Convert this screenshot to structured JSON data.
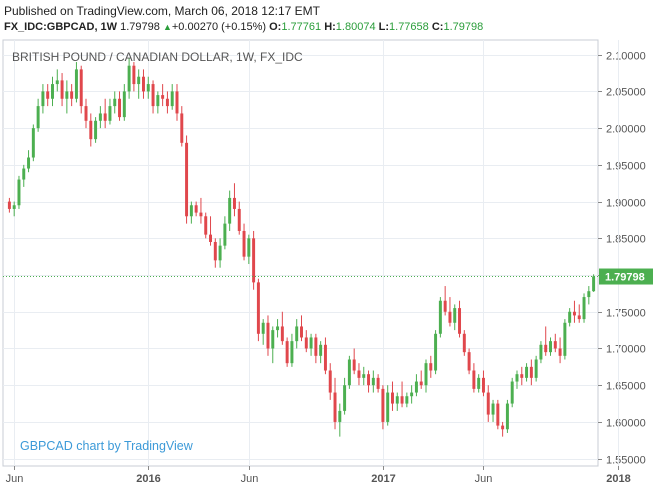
{
  "header": {
    "published": "Published on TradingView.com, March 06, 2018 12:17 EMT",
    "symbol": "FX_IDC:GBPCAD, 1W",
    "last": "1.79798",
    "change": "+0.00270 (+0.15%)",
    "o_label": "O:",
    "o": "1.77761",
    "h_label": "H:",
    "h": "1.80074",
    "l_label": "L:",
    "l": "1.77658",
    "c_label": "C:",
    "c": "1.79798",
    "up_arrow": "▲"
  },
  "colors": {
    "up": "#4caf50",
    "down": "#e0474c",
    "grid": "#e9edf2",
    "axis": "#555555",
    "price_tag": "#4caf50",
    "watermark": "#3c9ad8"
  },
  "chart_data": {
    "type": "candlestick",
    "title": "BRITISH POUND / CANADIAN DOLLAR, 1W, FX_IDC",
    "watermark": "GBPCAD chart by TradingView",
    "ylim": [
      1.54,
      2.12
    ],
    "y_ticks": [
      "2.10000",
      "2.05000",
      "2.00000",
      "1.95000",
      "1.90000",
      "1.85000",
      "1.80000",
      "1.75000",
      "1.70000",
      "1.65000",
      "1.60000",
      "1.55000"
    ],
    "x_ticks": [
      {
        "label": "Jun",
        "index": 1
      },
      {
        "label": "2016",
        "index": 29
      },
      {
        "label": "Jun",
        "index": 50
      },
      {
        "label": "2017",
        "index": 78
      },
      {
        "label": "Jun",
        "index": 99
      },
      {
        "label": "2018",
        "index": 127
      }
    ],
    "last_price": 1.79798,
    "last_price_label": "1.79798",
    "candles": [
      [
        1.9,
        1.905,
        1.885,
        1.89
      ],
      [
        1.89,
        1.9,
        1.88,
        1.895
      ],
      [
        1.895,
        1.935,
        1.89,
        1.93
      ],
      [
        1.93,
        1.95,
        1.92,
        1.945
      ],
      [
        1.945,
        1.97,
        1.94,
        1.96
      ],
      [
        1.96,
        2.005,
        1.955,
        2.0
      ],
      [
        2.0,
        2.04,
        1.995,
        2.03
      ],
      [
        2.03,
        2.06,
        2.02,
        2.05
      ],
      [
        2.05,
        2.06,
        2.03,
        2.04
      ],
      [
        2.04,
        2.07,
        2.03,
        2.06
      ],
      [
        2.06,
        2.08,
        2.05,
        2.065
      ],
      [
        2.065,
        2.075,
        2.03,
        2.04
      ],
      [
        2.04,
        2.065,
        2.02,
        2.05
      ],
      [
        2.05,
        2.06,
        2.03,
        2.04
      ],
      [
        2.04,
        2.09,
        2.035,
        2.08
      ],
      [
        2.08,
        2.085,
        2.02,
        2.03
      ],
      [
        2.03,
        2.04,
        2.0,
        2.01
      ],
      [
        2.01,
        2.02,
        1.975,
        1.985
      ],
      [
        1.985,
        2.015,
        1.98,
        2.01
      ],
      [
        2.01,
        2.03,
        2.0,
        2.02
      ],
      [
        2.02,
        2.04,
        2.0,
        2.01
      ],
      [
        2.01,
        2.04,
        2.005,
        2.03
      ],
      [
        2.03,
        2.05,
        2.02,
        2.04
      ],
      [
        2.04,
        2.05,
        2.01,
        2.015
      ],
      [
        2.015,
        2.06,
        2.01,
        2.05
      ],
      [
        2.05,
        2.095,
        2.04,
        2.085
      ],
      [
        2.085,
        2.09,
        2.05,
        2.06
      ],
      [
        2.06,
        2.08,
        2.04,
        2.07
      ],
      [
        2.07,
        2.08,
        2.04,
        2.05
      ],
      [
        2.05,
        2.07,
        2.04,
        2.06
      ],
      [
        2.06,
        2.065,
        2.02,
        2.03
      ],
      [
        2.03,
        2.05,
        2.02,
        2.045
      ],
      [
        2.045,
        2.06,
        2.03,
        2.04
      ],
      [
        2.04,
        2.05,
        2.02,
        2.03
      ],
      [
        2.03,
        2.06,
        2.025,
        2.05
      ],
      [
        2.05,
        2.06,
        2.01,
        2.02
      ],
      [
        2.02,
        2.03,
        1.975,
        1.98
      ],
      [
        1.98,
        1.99,
        1.87,
        1.88
      ],
      [
        1.88,
        1.9,
        1.87,
        1.895
      ],
      [
        1.895,
        1.9,
        1.88,
        1.885
      ],
      [
        1.885,
        1.905,
        1.87,
        1.88
      ],
      [
        1.88,
        1.885,
        1.85,
        1.855
      ],
      [
        1.855,
        1.88,
        1.84,
        1.845
      ],
      [
        1.845,
        1.85,
        1.81,
        1.82
      ],
      [
        1.82,
        1.85,
        1.81,
        1.84
      ],
      [
        1.84,
        1.88,
        1.835,
        1.87
      ],
      [
        1.87,
        1.915,
        1.86,
        1.905
      ],
      [
        1.905,
        1.925,
        1.88,
        1.89
      ],
      [
        1.89,
        1.9,
        1.855,
        1.86
      ],
      [
        1.86,
        1.87,
        1.82,
        1.825
      ],
      [
        1.825,
        1.855,
        1.815,
        1.85
      ],
      [
        1.85,
        1.86,
        1.78,
        1.79
      ],
      [
        1.79,
        1.795,
        1.71,
        1.72
      ],
      [
        1.72,
        1.74,
        1.705,
        1.735
      ],
      [
        1.735,
        1.745,
        1.69,
        1.7
      ],
      [
        1.7,
        1.73,
        1.68,
        1.725
      ],
      [
        1.725,
        1.74,
        1.715,
        1.73
      ],
      [
        1.73,
        1.75,
        1.705,
        1.71
      ],
      [
        1.71,
        1.715,
        1.675,
        1.68
      ],
      [
        1.68,
        1.72,
        1.675,
        1.71
      ],
      [
        1.71,
        1.74,
        1.7,
        1.73
      ],
      [
        1.73,
        1.745,
        1.71,
        1.715
      ],
      [
        1.715,
        1.725,
        1.695,
        1.7
      ],
      [
        1.7,
        1.72,
        1.69,
        1.715
      ],
      [
        1.715,
        1.72,
        1.68,
        1.69
      ],
      [
        1.69,
        1.71,
        1.68,
        1.705
      ],
      [
        1.705,
        1.715,
        1.665,
        1.67
      ],
      [
        1.67,
        1.68,
        1.63,
        1.64
      ],
      [
        1.64,
        1.66,
        1.59,
        1.6
      ],
      [
        1.6,
        1.625,
        1.58,
        1.615
      ],
      [
        1.615,
        1.66,
        1.61,
        1.65
      ],
      [
        1.65,
        1.69,
        1.645,
        1.685
      ],
      [
        1.685,
        1.7,
        1.665,
        1.67
      ],
      [
        1.67,
        1.68,
        1.65,
        1.66
      ],
      [
        1.66,
        1.675,
        1.65,
        1.665
      ],
      [
        1.665,
        1.67,
        1.64,
        1.65
      ],
      [
        1.65,
        1.67,
        1.64,
        1.66
      ],
      [
        1.66,
        1.665,
        1.64,
        1.645
      ],
      [
        1.645,
        1.65,
        1.59,
        1.6
      ],
      [
        1.6,
        1.65,
        1.595,
        1.64
      ],
      [
        1.64,
        1.655,
        1.615,
        1.625
      ],
      [
        1.625,
        1.64,
        1.615,
        1.635
      ],
      [
        1.635,
        1.655,
        1.62,
        1.625
      ],
      [
        1.625,
        1.64,
        1.62,
        1.635
      ],
      [
        1.635,
        1.65,
        1.625,
        1.64
      ],
      [
        1.64,
        1.665,
        1.635,
        1.655
      ],
      [
        1.655,
        1.67,
        1.645,
        1.65
      ],
      [
        1.65,
        1.685,
        1.64,
        1.68
      ],
      [
        1.68,
        1.69,
        1.66,
        1.67
      ],
      [
        1.67,
        1.725,
        1.665,
        1.72
      ],
      [
        1.72,
        1.77,
        1.715,
        1.765
      ],
      [
        1.765,
        1.785,
        1.745,
        1.75
      ],
      [
        1.75,
        1.77,
        1.73,
        1.735
      ],
      [
        1.735,
        1.76,
        1.725,
        1.755
      ],
      [
        1.755,
        1.765,
        1.715,
        1.72
      ],
      [
        1.72,
        1.725,
        1.69,
        1.695
      ],
      [
        1.695,
        1.7,
        1.665,
        1.67
      ],
      [
        1.67,
        1.68,
        1.64,
        1.645
      ],
      [
        1.645,
        1.665,
        1.64,
        1.66
      ],
      [
        1.66,
        1.67,
        1.635,
        1.64
      ],
      [
        1.64,
        1.65,
        1.6,
        1.61
      ],
      [
        1.61,
        1.63,
        1.6,
        1.625
      ],
      [
        1.625,
        1.63,
        1.59,
        1.595
      ],
      [
        1.595,
        1.6,
        1.58,
        1.59
      ],
      [
        1.59,
        1.63,
        1.585,
        1.625
      ],
      [
        1.625,
        1.66,
        1.62,
        1.655
      ],
      [
        1.655,
        1.67,
        1.645,
        1.665
      ],
      [
        1.665,
        1.675,
        1.65,
        1.66
      ],
      [
        1.66,
        1.68,
        1.655,
        1.675
      ],
      [
        1.675,
        1.685,
        1.65,
        1.66
      ],
      [
        1.66,
        1.69,
        1.655,
        1.685
      ],
      [
        1.685,
        1.71,
        1.68,
        1.705
      ],
      [
        1.705,
        1.73,
        1.69,
        1.695
      ],
      [
        1.695,
        1.715,
        1.69,
        1.71
      ],
      [
        1.71,
        1.72,
        1.695,
        1.7
      ],
      [
        1.7,
        1.715,
        1.68,
        1.69
      ],
      [
        1.69,
        1.74,
        1.685,
        1.735
      ],
      [
        1.735,
        1.755,
        1.73,
        1.75
      ],
      [
        1.75,
        1.765,
        1.735,
        1.745
      ],
      [
        1.745,
        1.76,
        1.735,
        1.74
      ],
      [
        1.74,
        1.775,
        1.735,
        1.77
      ],
      [
        1.77,
        1.785,
        1.76,
        1.778
      ],
      [
        1.778,
        1.801,
        1.777,
        1.798
      ]
    ]
  }
}
